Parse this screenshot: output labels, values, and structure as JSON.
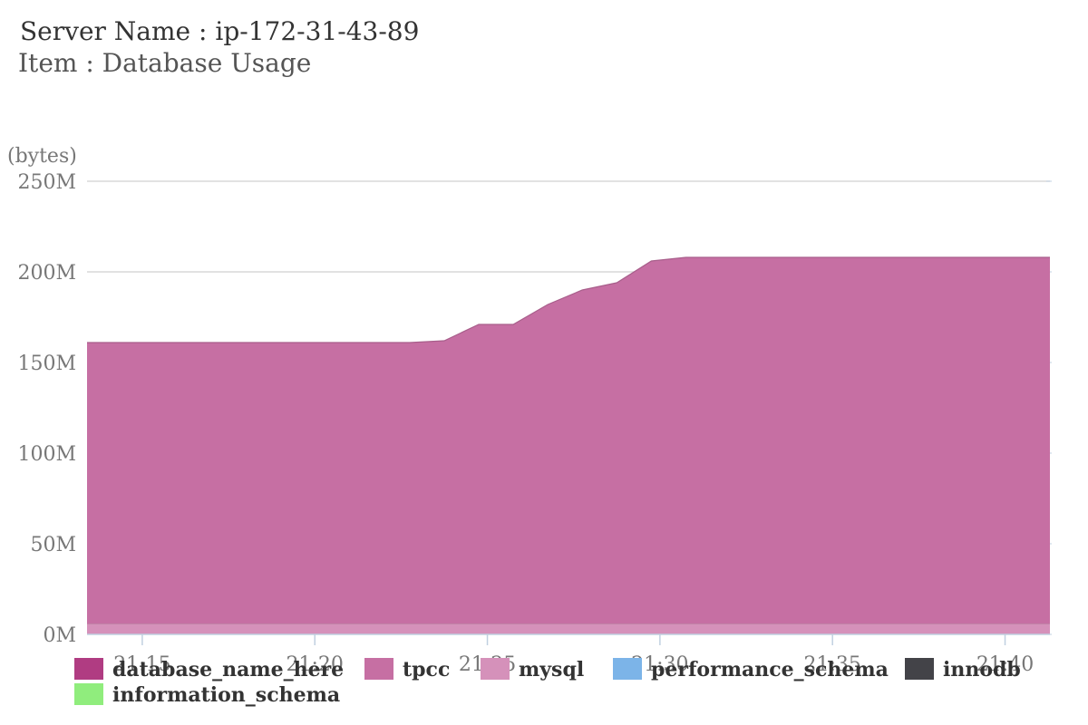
{
  "header": {
    "server_line": "Server Name : ip-172-31-43-89",
    "item_line": "Item : Database Usage"
  },
  "chart_data": {
    "type": "area",
    "stacked": true,
    "ylabel": "(bytes)",
    "ylim": [
      0,
      250
    ],
    "yticks": [
      0,
      50,
      100,
      150,
      200,
      250
    ],
    "ytick_labels": [
      "0M",
      "50M",
      "100M",
      "150M",
      "200M",
      "250M"
    ],
    "xlim": [
      "21:13:24",
      "21:41:18"
    ],
    "xticks": [
      "21:15",
      "21:20",
      "21:25",
      "21:30",
      "21:35",
      "21:40"
    ],
    "x": [
      "21:13:24",
      "21:22:45",
      "21:23:45",
      "21:24:45",
      "21:25:45",
      "21:26:45",
      "21:27:45",
      "21:28:45",
      "21:29:45",
      "21:30:45",
      "21:31:45",
      "21:41:18"
    ],
    "grid": true,
    "legend_position": "bottom",
    "series": [
      {
        "name": "database_name_here",
        "color": "#b03c82",
        "values": [
          0,
          0,
          0,
          0,
          0,
          0,
          0,
          0,
          0,
          0,
          0,
          0
        ]
      },
      {
        "name": "tpcc",
        "color": "#c66fa3",
        "values": [
          155,
          155,
          156,
          165,
          165,
          176,
          184,
          188,
          200,
          202,
          202,
          202
        ]
      },
      {
        "name": "mysql",
        "color": "#d591ba",
        "values": [
          6,
          6,
          6,
          6,
          6,
          6,
          6,
          6,
          6,
          6,
          6,
          6
        ]
      },
      {
        "name": "performance_schema",
        "color": "#7cb4e8",
        "values": [
          0,
          0,
          0,
          0,
          0,
          0,
          0,
          0,
          0,
          0,
          0,
          0
        ]
      },
      {
        "name": "innodb",
        "color": "#434348",
        "values": [
          0,
          0,
          0,
          0,
          0,
          0,
          0,
          0,
          0,
          0,
          0,
          0
        ]
      },
      {
        "name": "information_schema",
        "color": "#90ed7d",
        "values": [
          0,
          0,
          0,
          0,
          0,
          0,
          0,
          0,
          0,
          0,
          0,
          0
        ]
      }
    ]
  }
}
